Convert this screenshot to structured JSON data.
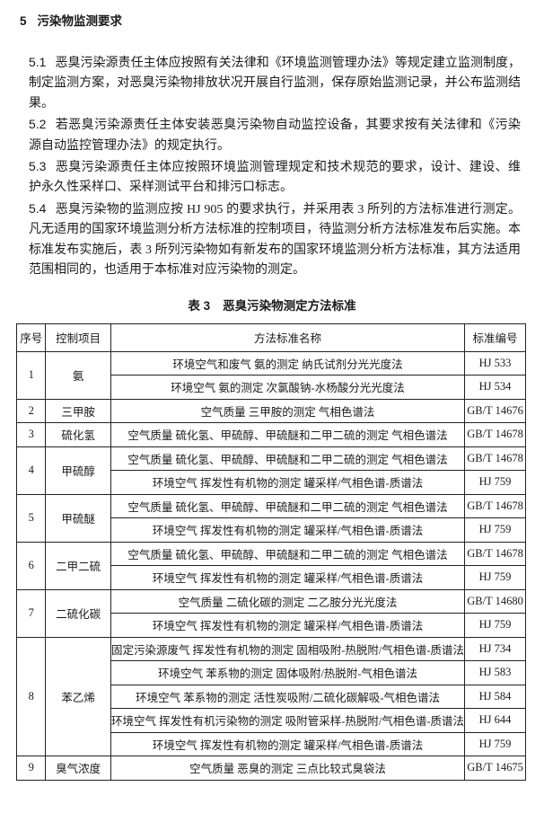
{
  "section": {
    "number": "5",
    "title": "污染物监测要求"
  },
  "paragraphs": [
    {
      "number": "5.1",
      "lines": [
        "恶臭污染源责任主体应按照有关法律和《环境监测管理办法》等规定建立监测制度，",
        "制定监测方案，对恶臭污染物排放状况开展自行监测，保存原始监测记录，并公布监测结",
        "果。"
      ]
    },
    {
      "number": "5.2",
      "lines": [
        "若恶臭污染源责任主体安装恶臭污染物自动监控设备，其要求按有关法律和《污染",
        "源自动监控管理办法》的规定执行。"
      ]
    },
    {
      "number": "5.3",
      "lines": [
        "恶臭污染源责任主体应按照环境监测管理规定和技术规范的要求，设计、建设、维",
        "护永久性采样口、采样测试平台和排污口标志。"
      ]
    },
    {
      "number": "5.4",
      "lines": [
        "恶臭污染物的监测应按 HJ 905 的要求执行，并采用表 3 所列的方法标准进行测定。",
        "凡无适用的国家环境监测分析方法标准的控制项目，待监测分析方法标准发布后实施。本",
        "标准发布实施后，表 3 所列污染物如有新发布的国家环境监测分析方法标准，其方法适用",
        "范围相同的，也适用于本标准对应污染物的测定。"
      ]
    }
  ],
  "table": {
    "caption_number": "表 3",
    "caption_title": "恶臭污染物测定方法标准",
    "headers": [
      "序号",
      "控制项目",
      "方法标准名称",
      "标准编号"
    ],
    "rows": [
      {
        "no": "1",
        "item": "氨",
        "methods": [
          {
            "name": "环境空气和废气  氨的测定  纳氏试剂分光光度法",
            "code": "HJ 533"
          },
          {
            "name": "环境空气  氨的测定  次氯酸钠-水杨酸分光光度法",
            "code": "HJ 534"
          }
        ]
      },
      {
        "no": "2",
        "item": "三甲胺",
        "methods": [
          {
            "name": "空气质量  三甲胺的测定  气相色谱法",
            "code": "GB/T 14676"
          }
        ]
      },
      {
        "no": "3",
        "item": "硫化氢",
        "methods": [
          {
            "name": "空气质量  硫化氢、甲硫醇、甲硫醚和二甲二硫的测定  气相色谱法",
            "code": "GB/T 14678"
          }
        ]
      },
      {
        "no": "4",
        "item": "甲硫醇",
        "methods": [
          {
            "name": "空气质量  硫化氢、甲硫醇、甲硫醚和二甲二硫的测定  气相色谱法",
            "code": "GB/T 14678"
          },
          {
            "name": "环境空气  挥发性有机物的测定  罐采样/气相色谱-质谱法",
            "code": "HJ 759"
          }
        ]
      },
      {
        "no": "5",
        "item": "甲硫醚",
        "methods": [
          {
            "name": "空气质量  硫化氢、甲硫醇、甲硫醚和二甲二硫的测定  气相色谱法",
            "code": "GB/T 14678"
          },
          {
            "name": "环境空气  挥发性有机物的测定  罐采样/气相色谱-质谱法",
            "code": "HJ 759"
          }
        ]
      },
      {
        "no": "6",
        "item": "二甲二硫",
        "methods": [
          {
            "name": "空气质量  硫化氢、甲硫醇、甲硫醚和二甲二硫的测定  气相色谱法",
            "code": "GB/T 14678"
          },
          {
            "name": "环境空气  挥发性有机物的测定  罐采样/气相色谱-质谱法",
            "code": "HJ 759"
          }
        ]
      },
      {
        "no": "7",
        "item": "二硫化碳",
        "methods": [
          {
            "name": "空气质量  二硫化碳的测定  二乙胺分光光度法",
            "code": "GB/T 14680"
          },
          {
            "name": "环境空气  挥发性有机物的测定  罐采样/气相色谱-质谱法",
            "code": "HJ 759"
          }
        ]
      },
      {
        "no": "8",
        "item": "苯乙烯",
        "methods": [
          {
            "name": "固定污染源废气  挥发性有机物的测定  固相吸附-热脱附/气相色谱-质谱法",
            "code": "HJ 734"
          },
          {
            "name": "环境空气  苯系物的测定  固体吸附/热脱附-气相色谱法",
            "code": "HJ 583"
          },
          {
            "name": "环境空气  苯系物的测定  活性炭吸附/二硫化碳解吸-气相色谱法",
            "code": "HJ 584"
          },
          {
            "name": "环境空气  挥发性有机污染物的测定  吸附管采样-热脱附/气相色谱-质谱法",
            "code": "HJ 644"
          },
          {
            "name": "环境空气  挥发性有机物的测定  罐采样/气相色谱-质谱法",
            "code": "HJ 759"
          }
        ]
      },
      {
        "no": "9",
        "item": "臭气浓度",
        "methods": [
          {
            "name": "空气质量  恶臭的测定  三点比较式臭袋法",
            "code": "GB/T 14675"
          }
        ]
      }
    ]
  }
}
